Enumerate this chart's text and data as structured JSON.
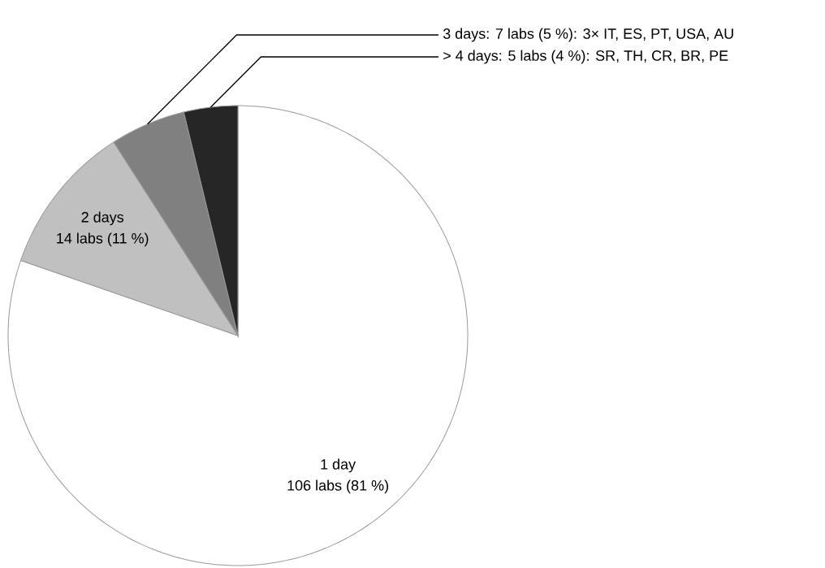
{
  "chart_data": {
    "type": "pie",
    "categories": [
      "1 day",
      "2 days",
      "3 days: 7 labs (5 %): 3× IT, ES, PT, USA, AU",
      "> 4 days: 5 labs (4 %): SR, TH, CR, BR, PE"
    ],
    "values": [
      106,
      14,
      7,
      5
    ],
    "value_labels": [
      "106 labs (81 %)",
      "14 labs (11 %)",
      null,
      null
    ],
    "colors": [
      "#ffffff",
      "#c0c0c0",
      "#808080",
      "#262626"
    ]
  }
}
